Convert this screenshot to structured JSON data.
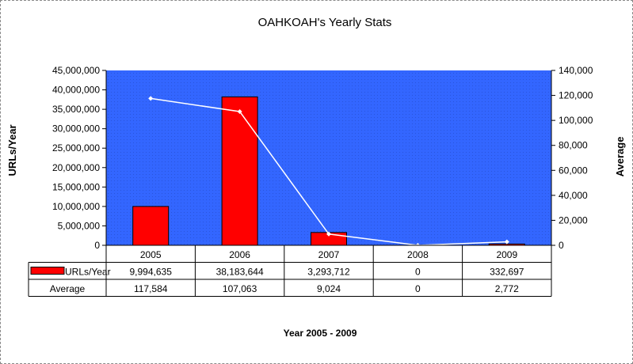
{
  "chart_data": {
    "type": "bar",
    "title": "OAHKOAH's Yearly Stats",
    "xlabel": "Year 2005 - 2009",
    "ylabel": "URLs/Year",
    "y2label": "Average",
    "categories": [
      "2005",
      "2006",
      "2007",
      "2008",
      "2009"
    ],
    "ylim": [
      0,
      45000000
    ],
    "y2lim": [
      0,
      140000
    ],
    "yticks": [
      "0",
      "5,000,000",
      "10,000,000",
      "15,000,000",
      "20,000,000",
      "25,000,000",
      "30,000,000",
      "35,000,000",
      "40,000,000",
      "45,000,000"
    ],
    "y2ticks": [
      "0",
      "20,000",
      "40,000",
      "60,000",
      "80,000",
      "100,000",
      "120,000",
      "140,000"
    ],
    "grid": false,
    "plot_background": "#3366ff",
    "series": [
      {
        "name": "URLs/Year",
        "type": "bar",
        "axis": "left",
        "color": "#ff0000",
        "values": [
          9994635,
          38183644,
          3293712,
          0,
          332697
        ],
        "labels": [
          "9,994,635",
          "38,183,644",
          "3,293,712",
          "0",
          "332,697"
        ]
      },
      {
        "name": "Average",
        "type": "line",
        "axis": "right",
        "color": "#ffffff",
        "values": [
          117584,
          107063,
          9024,
          0,
          2772
        ],
        "labels": [
          "117,584",
          "107,063",
          "9,024",
          "0",
          "2,772"
        ]
      }
    ]
  }
}
